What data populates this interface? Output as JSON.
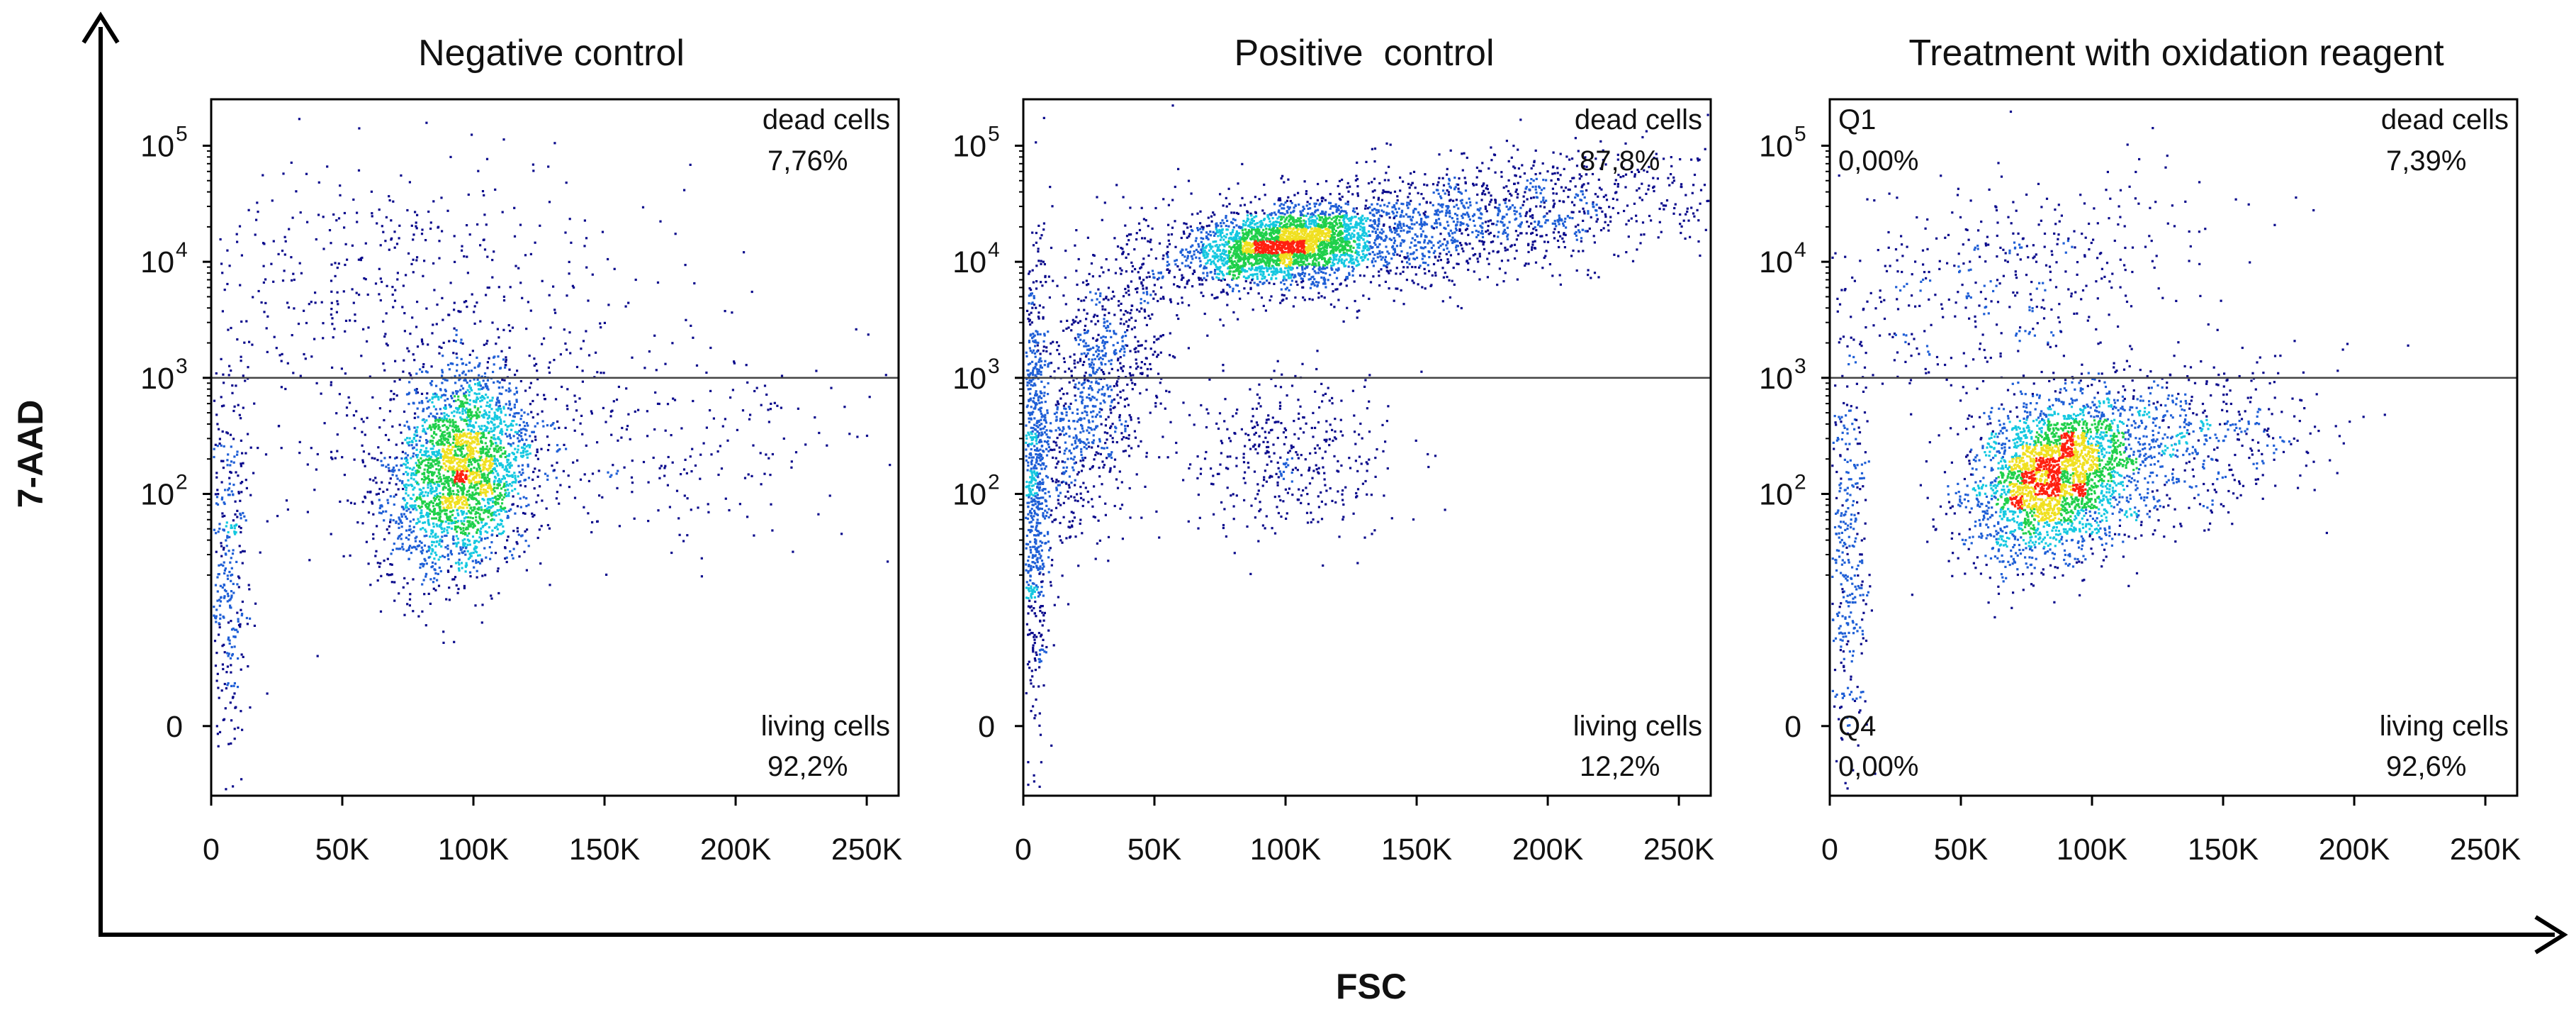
{
  "chart_data": {
    "type": "scatter",
    "x_axis_label": "FSC",
    "y_axis_label": "7-AAD",
    "x_ticks": [
      "0",
      "50K",
      "100K",
      "150K",
      "200K",
      "250K"
    ],
    "y_ticks": [
      {
        "base": "0",
        "exp": ""
      },
      {
        "base": "10",
        "exp": "2"
      },
      {
        "base": "10",
        "exp": "3"
      },
      {
        "base": "10",
        "exp": "4"
      },
      {
        "base": "10",
        "exp": "5"
      }
    ],
    "xlim": [
      0,
      262144
    ],
    "ylim_decades": [
      -0.6,
      5.4
    ],
    "gate_threshold": 1000,
    "color_scale": [
      "#0a0a8c",
      "#1f5fd6",
      "#14c8e0",
      "#1fd04a",
      "#f0e020",
      "#ff2010"
    ],
    "panels": [
      {
        "title": "Negative control",
        "quadrants": {
          "upper_right": {
            "label": "dead cells",
            "value": "7,76%"
          },
          "lower_right": {
            "label": "living cells",
            "value": "92,2%"
          }
        },
        "populations": [
          {
            "name": "living",
            "x": 95000,
            "y_decade": 2.2,
            "sx": 14000,
            "sy": 0.45,
            "n": 2600,
            "corr": 0.2
          },
          {
            "name": "debris",
            "x": 6000,
            "y_decade": 1.5,
            "sx": 4000,
            "sy": 0.9,
            "n": 350,
            "corr": 0
          },
          {
            "name": "scatter_low",
            "x": 130000,
            "y_decade": 2.4,
            "sx": 60000,
            "sy": 0.45,
            "n": 450,
            "corr": 0
          },
          {
            "name": "dead",
            "x": 70000,
            "y_decade": 3.9,
            "sx": 50000,
            "sy": 0.5,
            "n": 450,
            "corr": 0.1
          }
        ]
      },
      {
        "title": "Positive  control",
        "quadrants": {
          "upper_right": {
            "label": "dead cells",
            "value": "87,8%"
          },
          "lower_right": {
            "label": "living cells",
            "value": "12,2%"
          }
        },
        "populations": [
          {
            "name": "dead_core",
            "x": 100000,
            "y_decade": 4.15,
            "sx": 18000,
            "sy": 0.15,
            "n": 2300,
            "corr": 0.3
          },
          {
            "name": "dead_band",
            "x": 150000,
            "y_decade": 4.3,
            "sx": 55000,
            "sy": 0.3,
            "n": 1800,
            "corr": 0.55
          },
          {
            "name": "rising_arm",
            "x": 25000,
            "y_decade": 2.8,
            "sx": 15000,
            "sy": 0.7,
            "n": 1000,
            "corr": 0.6
          },
          {
            "name": "left_stripe",
            "x": 4000,
            "y_decade": 2.2,
            "sx": 2500,
            "sy": 1.0,
            "n": 700,
            "corr": 0
          },
          {
            "name": "living",
            "x": 100000,
            "y_decade": 2.3,
            "sx": 20000,
            "sy": 0.35,
            "n": 400,
            "corr": 0
          }
        ]
      },
      {
        "title": "Treatment with oxidation reagent",
        "quadrants": {
          "upper_left": {
            "label": "Q1",
            "value": "0,00%"
          },
          "upper_right": {
            "label": "dead cells",
            "value": "7,39%"
          },
          "lower_left": {
            "label": "Q4",
            "value": "0,00%"
          },
          "lower_right": {
            "label": "living cells",
            "value": "92,6%"
          }
        },
        "populations": [
          {
            "name": "living",
            "x": 85000,
            "y_decade": 2.15,
            "sx": 16000,
            "sy": 0.35,
            "n": 2600,
            "corr": 0.25
          },
          {
            "name": "living_tail",
            "x": 125000,
            "y_decade": 2.4,
            "sx": 30000,
            "sy": 0.35,
            "n": 700,
            "corr": 0.3
          },
          {
            "name": "debris",
            "x": 6000,
            "y_decade": 1.5,
            "sx": 4000,
            "sy": 0.9,
            "n": 350,
            "corr": 0
          },
          {
            "name": "dead",
            "x": 60000,
            "y_decade": 3.8,
            "sx": 40000,
            "sy": 0.5,
            "n": 450,
            "corr": 0.4
          }
        ]
      }
    ]
  }
}
